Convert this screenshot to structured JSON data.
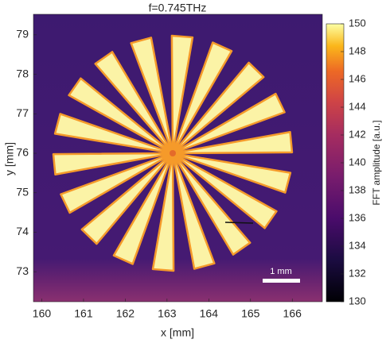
{
  "chart_data": {
    "type": "heatmap",
    "title": "f=0.745THz",
    "xlabel": "x [mm]",
    "ylabel": "y [mm]",
    "xlim": [
      159.8,
      166.72
    ],
    "ylim": [
      72.24,
      79.52
    ],
    "xticks": [
      160,
      161,
      162,
      163,
      164,
      165,
      166
    ],
    "yticks": [
      73,
      74,
      75,
      76,
      77,
      78,
      79
    ],
    "colorbar_label": "FFT amplitude [a.u.]",
    "clim": [
      130,
      150
    ],
    "cticks": [
      130,
      132,
      134,
      136,
      138,
      140,
      142,
      144,
      146,
      148,
      150
    ],
    "scale_bar_label": "1 mm"
  }
}
